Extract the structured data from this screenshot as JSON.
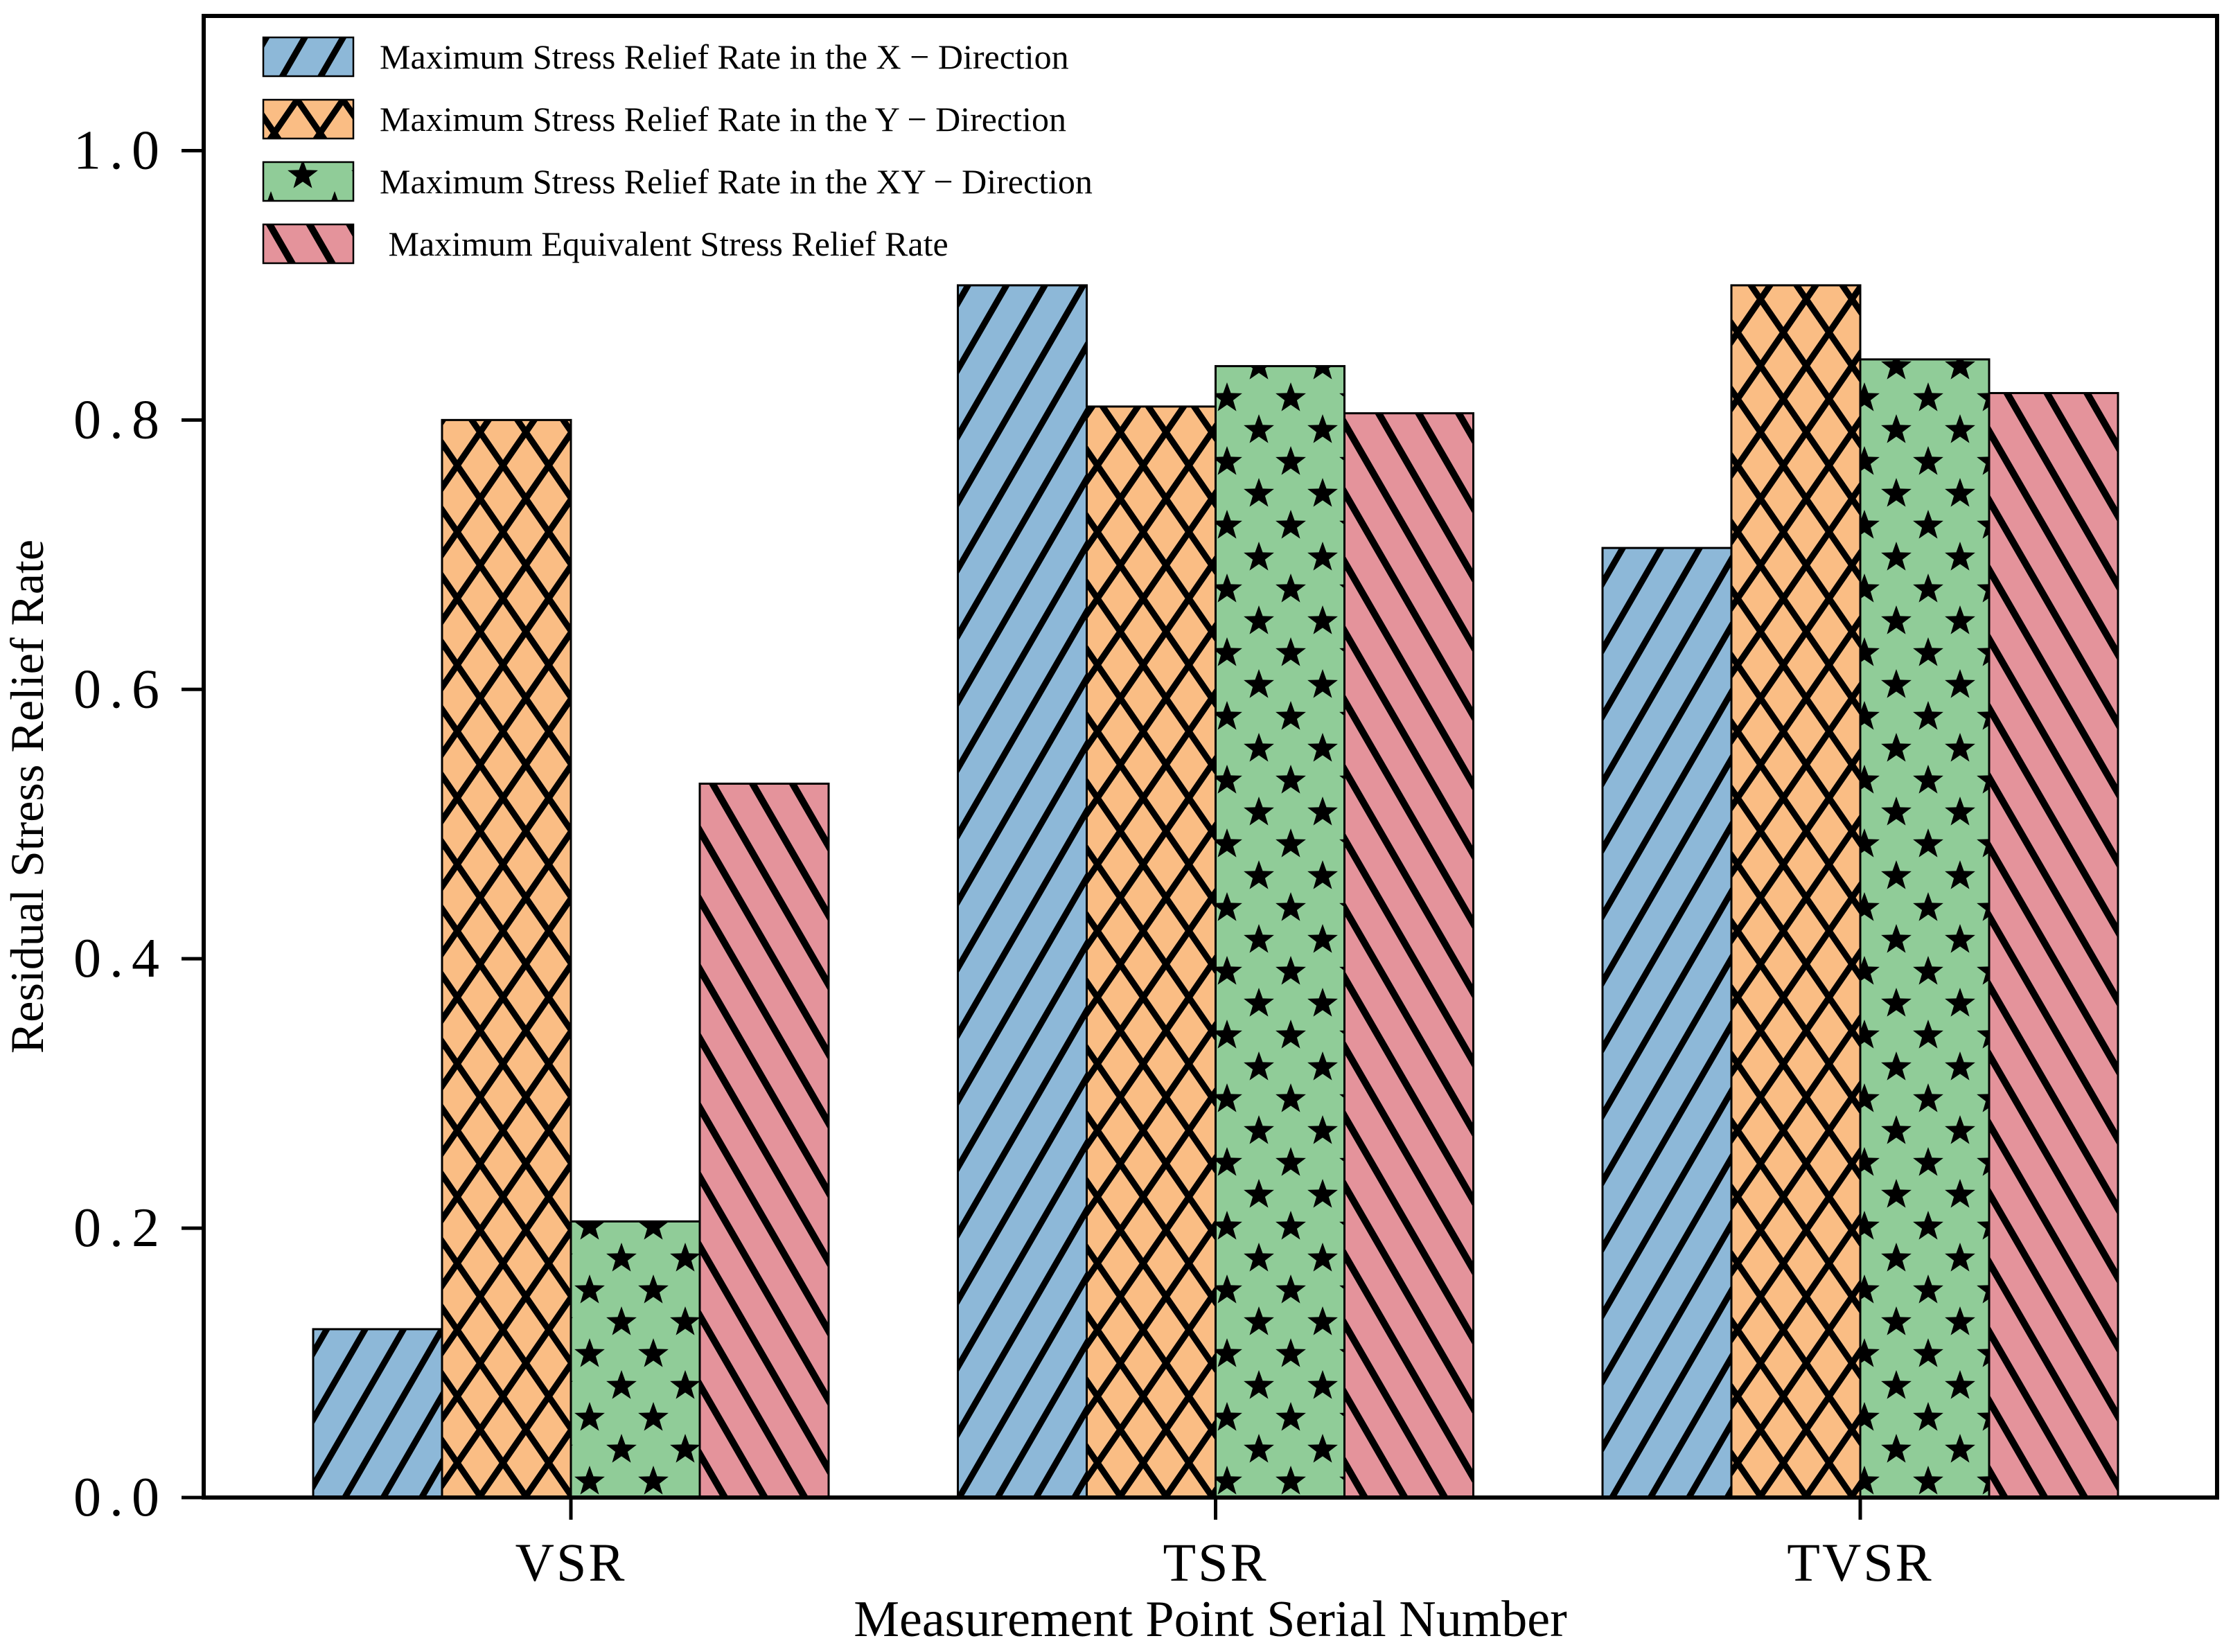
{
  "figure": {
    "background": "#ffffff",
    "frame_color": "#000000"
  },
  "chart_data": {
    "type": "bar",
    "title": "",
    "xlabel": "Measurement Point Serial Number",
    "ylabel": "Residual Stress Relief Rate",
    "categories": [
      "VSR",
      "TSR",
      "TVSR"
    ],
    "series": [
      {
        "key": "x-direction",
        "name": "Maximum Stress Relief Rate in the X − Direction",
        "values": [
          0.125,
          0.9,
          0.705
        ],
        "color": "#8db8d8",
        "hatch": "forward-diagonal"
      },
      {
        "key": "y-direction",
        "name": "Maximum Stress Relief Rate in the Y − Direction",
        "values": [
          0.8,
          0.81,
          0.9
        ],
        "color": "#fabd84",
        "hatch": "cross-diagonal"
      },
      {
        "key": "xy-direction",
        "name": "Maximum Stress Relief Rate in the XY − Direction",
        "values": [
          0.205,
          0.84,
          0.845
        ],
        "color": "#90cc98",
        "hatch": "stars"
      },
      {
        "key": "equivalent",
        "name": " Maximum Equivalent Stress Relief Rate",
        "values": [
          0.53,
          0.805,
          0.82
        ],
        "color": "#e4939b",
        "hatch": "back-diagonal"
      }
    ],
    "ylim": [
      0.0,
      1.1
    ],
    "yticks": [
      0.0,
      0.2,
      0.4,
      0.6,
      0.8,
      1.0
    ],
    "grid": false,
    "legend_position": "upper-left",
    "hatch_color": "#000000"
  }
}
